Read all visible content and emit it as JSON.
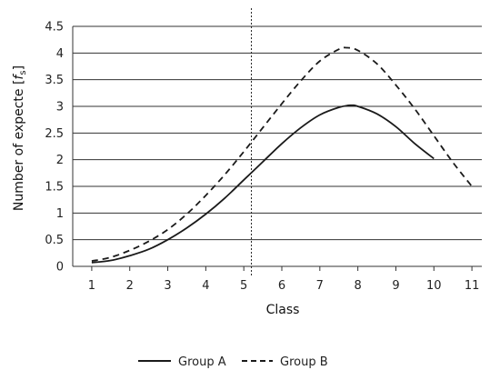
{
  "chart_data": {
    "type": "line",
    "xlabel": "Class",
    "ylabel": "Number of expecte [",
    "ylabel_symbol": "f",
    "ylabel_subscript": "s",
    "ylabel_close": "]",
    "xlim": [
      0.5,
      11.5
    ],
    "ylim": [
      0,
      4.5
    ],
    "xticks": [
      "1",
      "2",
      "3",
      "4",
      "5",
      "6",
      "7",
      "8",
      "9",
      "10",
      "11"
    ],
    "yticks": [
      "0",
      "0.5",
      "1",
      "1.5",
      "2",
      "2.5",
      "3",
      "3.5",
      "4",
      "4.5"
    ],
    "grid": "horizontal",
    "reference_line_x": 5.2,
    "legend_position": "bottom",
    "series": [
      {
        "name": "Group A",
        "style": "solid",
        "color": "#1a1a1a",
        "x": [
          1,
          1.5,
          2,
          2.5,
          3,
          3.5,
          4,
          4.5,
          5,
          5.5,
          6,
          6.5,
          7,
          7.5,
          7.8,
          8,
          8.5,
          9,
          9.5,
          10
        ],
        "y": [
          0.07,
          0.11,
          0.2,
          0.32,
          0.5,
          0.72,
          0.98,
          1.28,
          1.62,
          1.96,
          2.3,
          2.6,
          2.84,
          2.98,
          3.02,
          3.0,
          2.86,
          2.62,
          2.3,
          2.02
        ]
      },
      {
        "name": "Group B",
        "style": "dashed",
        "color": "#1a1a1a",
        "x": [
          1,
          1.5,
          2,
          2.5,
          3,
          3.5,
          4,
          4.5,
          5,
          5.5,
          6,
          6.5,
          7,
          7.5,
          7.7,
          8,
          8.5,
          9,
          9.5,
          10,
          10.5,
          11
        ],
        "y": [
          0.1,
          0.17,
          0.3,
          0.47,
          0.69,
          0.98,
          1.33,
          1.72,
          2.15,
          2.6,
          3.05,
          3.48,
          3.85,
          4.07,
          4.1,
          4.05,
          3.8,
          3.4,
          2.95,
          2.45,
          1.95,
          1.5
        ]
      }
    ]
  }
}
